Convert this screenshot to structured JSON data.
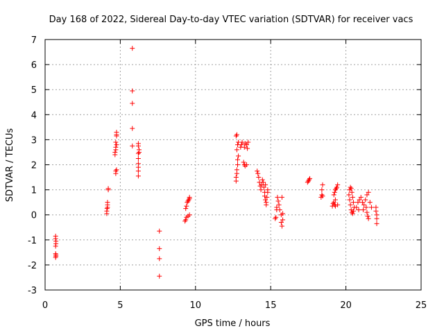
{
  "chart_data": {
    "type": "scatter",
    "title": "Day 168 of 2022, Sidereal Day-to-day VTEC variation (SDTVAR) for receiver vacs",
    "xlabel": "GPS time / hours",
    "ylabel": "SDTVAR / TECUs",
    "xlim": [
      0,
      25
    ],
    "ylim": [
      -3,
      7
    ],
    "xticks": [
      "0",
      "5",
      "10",
      "15",
      "20",
      "25"
    ],
    "yticks": [
      "-3",
      "-2",
      "-1",
      "0",
      "1",
      "2",
      "3",
      "4",
      "5",
      "6",
      "7"
    ],
    "grid": true,
    "marker": "+",
    "color": "#ff0000",
    "series": [
      {
        "name": "SDTVAR",
        "points": [
          [
            0.7,
            -0.85
          ],
          [
            0.7,
            -0.95
          ],
          [
            0.72,
            -1.05
          ],
          [
            0.72,
            -1.15
          ],
          [
            0.7,
            -1.25
          ],
          [
            0.7,
            -1.55
          ],
          [
            0.72,
            -1.6
          ],
          [
            0.72,
            -1.65
          ],
          [
            0.7,
            -1.7
          ],
          [
            4.1,
            0.05
          ],
          [
            4.1,
            0.15
          ],
          [
            4.12,
            0.25
          ],
          [
            4.15,
            0.3
          ],
          [
            4.15,
            0.4
          ],
          [
            4.15,
            0.5
          ],
          [
            4.2,
            1.0
          ],
          [
            4.2,
            1.05
          ],
          [
            4.7,
            1.65
          ],
          [
            4.7,
            1.75
          ],
          [
            4.75,
            1.8
          ],
          [
            4.65,
            2.4
          ],
          [
            4.65,
            2.5
          ],
          [
            4.7,
            2.6
          ],
          [
            4.7,
            2.7
          ],
          [
            4.75,
            2.8
          ],
          [
            4.7,
            2.9
          ],
          [
            4.75,
            3.15
          ],
          [
            4.75,
            3.2
          ],
          [
            4.75,
            3.3
          ],
          [
            5.8,
            6.65
          ],
          [
            5.8,
            4.95
          ],
          [
            5.8,
            4.45
          ],
          [
            5.8,
            3.45
          ],
          [
            5.8,
            2.75
          ],
          [
            6.2,
            1.55
          ],
          [
            6.2,
            1.75
          ],
          [
            6.2,
            1.9
          ],
          [
            6.2,
            2.05
          ],
          [
            6.2,
            2.25
          ],
          [
            6.2,
            2.45
          ],
          [
            6.25,
            2.5
          ],
          [
            6.25,
            2.6
          ],
          [
            6.2,
            2.75
          ],
          [
            6.2,
            2.85
          ],
          [
            7.6,
            -0.65
          ],
          [
            7.6,
            -1.35
          ],
          [
            7.6,
            -1.75
          ],
          [
            7.6,
            -2.45
          ],
          [
            9.3,
            -0.25
          ],
          [
            9.35,
            -0.2
          ],
          [
            9.4,
            -0.1
          ],
          [
            9.5,
            -0.05
          ],
          [
            9.6,
            0.0
          ],
          [
            9.35,
            0.25
          ],
          [
            9.4,
            0.35
          ],
          [
            9.45,
            0.5
          ],
          [
            9.5,
            0.55
          ],
          [
            9.55,
            0.6
          ],
          [
            9.6,
            0.65
          ],
          [
            9.6,
            0.7
          ],
          [
            12.7,
            1.35
          ],
          [
            12.7,
            1.5
          ],
          [
            12.75,
            1.65
          ],
          [
            12.75,
            1.8
          ],
          [
            12.8,
            2.0
          ],
          [
            12.8,
            2.2
          ],
          [
            12.85,
            2.35
          ],
          [
            12.75,
            2.6
          ],
          [
            12.8,
            2.8
          ],
          [
            12.85,
            2.9
          ],
          [
            12.7,
            3.15
          ],
          [
            12.75,
            3.2
          ],
          [
            13.0,
            2.7
          ],
          [
            13.05,
            2.8
          ],
          [
            13.1,
            2.9
          ],
          [
            13.2,
            2.1
          ],
          [
            13.25,
            2.0
          ],
          [
            13.3,
            1.95
          ],
          [
            13.4,
            2.0
          ],
          [
            13.25,
            2.7
          ],
          [
            13.3,
            2.85
          ],
          [
            13.4,
            2.8
          ],
          [
            13.45,
            2.65
          ],
          [
            13.5,
            2.9
          ],
          [
            14.1,
            1.75
          ],
          [
            14.15,
            1.65
          ],
          [
            14.2,
            1.5
          ],
          [
            14.25,
            1.3
          ],
          [
            14.3,
            1.15
          ],
          [
            14.35,
            1.0
          ],
          [
            14.4,
            1.2
          ],
          [
            14.45,
            1.4
          ],
          [
            14.5,
            1.3
          ],
          [
            14.55,
            1.1
          ],
          [
            14.6,
            0.9
          ],
          [
            14.6,
            0.75
          ],
          [
            14.65,
            0.6
          ],
          [
            14.7,
            0.5
          ],
          [
            14.7,
            0.4
          ],
          [
            14.75,
            0.7
          ],
          [
            14.8,
            0.9
          ],
          [
            14.8,
            1.0
          ],
          [
            14.65,
            1.2
          ],
          [
            15.3,
            -0.15
          ],
          [
            15.35,
            -0.1
          ],
          [
            15.4,
            0.2
          ],
          [
            15.4,
            0.3
          ],
          [
            15.45,
            0.7
          ],
          [
            15.5,
            0.55
          ],
          [
            15.55,
            0.4
          ],
          [
            15.6,
            0.2
          ],
          [
            15.7,
            0.0
          ],
          [
            15.7,
            -0.3
          ],
          [
            15.75,
            -0.45
          ],
          [
            15.8,
            -0.2
          ],
          [
            15.8,
            0.05
          ],
          [
            15.75,
            0.7
          ],
          [
            17.45,
            1.3
          ],
          [
            17.5,
            1.35
          ],
          [
            17.55,
            1.4
          ],
          [
            17.6,
            1.45
          ],
          [
            18.35,
            0.7
          ],
          [
            18.4,
            0.8
          ],
          [
            18.45,
            0.75
          ],
          [
            18.4,
            1.0
          ],
          [
            18.45,
            1.2
          ],
          [
            19.1,
            0.35
          ],
          [
            19.15,
            0.45
          ],
          [
            19.2,
            0.5
          ],
          [
            19.25,
            0.4
          ],
          [
            19.3,
            0.35
          ],
          [
            19.2,
            0.8
          ],
          [
            19.25,
            0.9
          ],
          [
            19.3,
            1.0
          ],
          [
            19.35,
            1.05
          ],
          [
            19.4,
            1.1
          ],
          [
            19.45,
            1.2
          ],
          [
            19.45,
            0.4
          ],
          [
            19.3,
            0.6
          ],
          [
            20.2,
            0.8
          ],
          [
            20.25,
            1.0
          ],
          [
            20.3,
            1.1
          ],
          [
            20.35,
            1.05
          ],
          [
            20.4,
            0.9
          ],
          [
            20.45,
            0.7
          ],
          [
            20.5,
            0.5
          ],
          [
            20.55,
            0.3
          ],
          [
            20.25,
            0.6
          ],
          [
            20.3,
            0.4
          ],
          [
            20.35,
            0.2
          ],
          [
            20.4,
            0.1
          ],
          [
            20.45,
            0.05
          ],
          [
            20.5,
            0.15
          ],
          [
            20.7,
            0.3
          ],
          [
            20.8,
            0.5
          ],
          [
            20.9,
            0.6
          ],
          [
            21.0,
            0.7
          ],
          [
            21.1,
            0.5
          ],
          [
            21.2,
            0.4
          ],
          [
            21.3,
            0.6
          ],
          [
            21.4,
            0.8
          ],
          [
            21.5,
            0.9
          ],
          [
            21.35,
            0.3
          ],
          [
            21.4,
            0.1
          ],
          [
            21.45,
            -0.05
          ],
          [
            21.5,
            -0.15
          ],
          [
            21.6,
            0.5
          ],
          [
            21.7,
            0.3
          ],
          [
            21.15,
            0.2
          ],
          [
            20.85,
            0.2
          ],
          [
            22.0,
            0.3
          ],
          [
            22.0,
            0.15
          ],
          [
            22.05,
            0.0
          ],
          [
            22.05,
            -0.15
          ],
          [
            22.05,
            -0.35
          ]
        ]
      }
    ]
  }
}
